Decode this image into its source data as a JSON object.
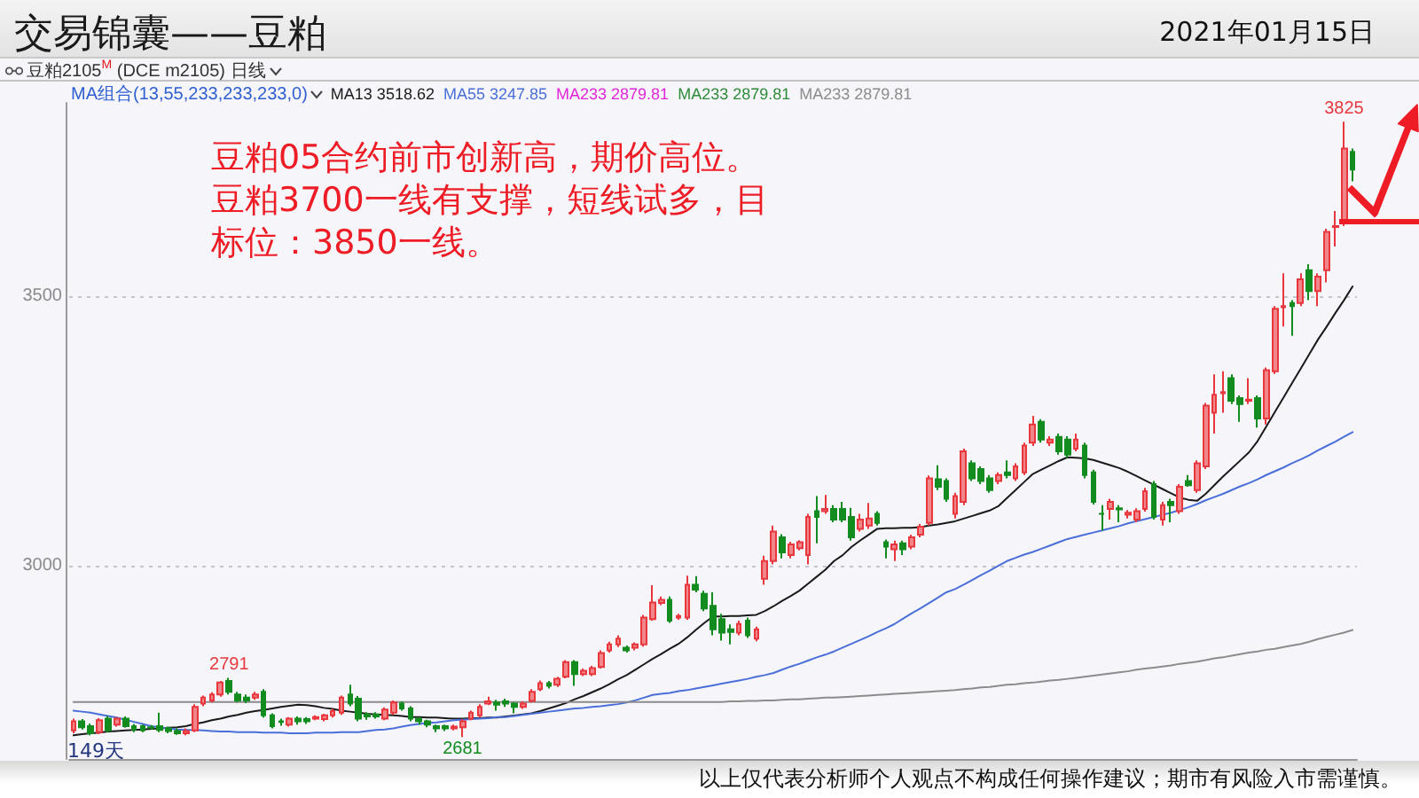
{
  "chart_data": {
    "type": "candlestick",
    "title": "交易锦囊——豆粕",
    "subtitle": "豆粕2105$^{M}$ (DCE m2105) 日线",
    "legend_title": "MA组合(13,55,233,233,233,0)",
    "legend": "top left",
    "tick_labels": "y",
    "grid": "y",
    "ylim": [
      2640,
      3860
    ],
    "yticks": [
      3000,
      3500
    ],
    "annotations": [
      "2021年01月15日",
      "豆粕05合约前市创新高，期价高位。",
      "豆粕3700一线有支撑，短线试多，目标位：3850一线。",
      "149天",
      "以上仅代表分析师个人观点不构成任何操作建议；期市有风险入市需谨慎。",
      {
        "text": "3825",
        "y": 3825
      },
      {
        "text": "2791",
        "y": 2791
      },
      {
        "text": "2681",
        "y": 2681
      }
    ],
    "categories": [
      null,
      null,
      null,
      null,
      null,
      null,
      null,
      null,
      null,
      null,
      null,
      null,
      null,
      null,
      null,
      null,
      null,
      null,
      null,
      null,
      null,
      null,
      null,
      null,
      null,
      null,
      null,
      null,
      null,
      null,
      null,
      null,
      null,
      null,
      null,
      null,
      null,
      null,
      null,
      null,
      null,
      null,
      null,
      null,
      null,
      null,
      null,
      null,
      null,
      null,
      null,
      null,
      null,
      null,
      null,
      null,
      null,
      null,
      null,
      null,
      null,
      null,
      null,
      null,
      null,
      null,
      null,
      null,
      null,
      null,
      null,
      null,
      null,
      null,
      null,
      null,
      null,
      null,
      null,
      null,
      null,
      null,
      null,
      null,
      null,
      null,
      null,
      null,
      null,
      null,
      null,
      null,
      null,
      null,
      null,
      null,
      null,
      null,
      null,
      null,
      null,
      null,
      null,
      null,
      null,
      null,
      null,
      null,
      null,
      null,
      null,
      null,
      null,
      null,
      null,
      null,
      null,
      null,
      null,
      null,
      null,
      null,
      null,
      null,
      null,
      null,
      null,
      null,
      null,
      null,
      null,
      null,
      null,
      null,
      null,
      null,
      null,
      null,
      null,
      null,
      null,
      null,
      null,
      null,
      null,
      null,
      null,
      null,
      null
    ],
    "ohlc": [
      [
        2693,
        2715,
        2688,
        2710
      ],
      [
        2710,
        2714,
        2695,
        2699
      ],
      [
        2701,
        2706,
        2684,
        2688
      ],
      [
        2690,
        2716,
        2686,
        2712
      ],
      [
        2715,
        2720,
        2690,
        2693
      ],
      [
        2704,
        2718,
        2700,
        2715
      ],
      [
        2715,
        2719,
        2698,
        2701
      ],
      [
        2701,
        2705,
        2690,
        2695
      ],
      [
        2701,
        2704,
        2690,
        2693
      ],
      [
        2699,
        2703,
        2695,
        2698
      ],
      [
        2701,
        2726,
        2690,
        2694
      ],
      [
        2697,
        2700,
        2688,
        2692
      ],
      [
        2692,
        2697,
        2685,
        2688
      ],
      [
        2688,
        2697,
        2684,
        2692
      ],
      [
        2693,
        2742,
        2690,
        2737
      ],
      [
        2743,
        2758,
        2738,
        2754
      ],
      [
        2749,
        2764,
        2745,
        2760
      ],
      [
        2760,
        2785,
        2756,
        2782
      ],
      [
        2785,
        2791,
        2760,
        2765
      ],
      [
        2760,
        2765,
        2745,
        2749
      ],
      [
        2754,
        2760,
        2744,
        2749
      ],
      [
        2754,
        2765,
        2750,
        2760
      ],
      [
        2765,
        2770,
        2717,
        2721
      ],
      [
        2721,
        2725,
        2697,
        2701
      ],
      [
        2710,
        2715,
        2702,
        2709
      ],
      [
        2704,
        2718,
        2700,
        2715
      ],
      [
        2715,
        2719,
        2704,
        2710
      ],
      [
        2714,
        2718,
        2705,
        2710
      ],
      [
        2715,
        2721,
        2712,
        2718
      ],
      [
        2714,
        2724,
        2710,
        2721
      ],
      [
        2721,
        2733,
        2717,
        2729
      ],
      [
        2726,
        2758,
        2722,
        2754
      ],
      [
        2760,
        2778,
        2738,
        2743
      ],
      [
        2752,
        2757,
        2710,
        2715
      ],
      [
        2723,
        2727,
        2713,
        2719
      ],
      [
        2723,
        2727,
        2715,
        2719
      ],
      [
        2715,
        2736,
        2712,
        2732
      ],
      [
        2726,
        2749,
        2722,
        2745
      ],
      [
        2743,
        2747,
        2730,
        2734
      ],
      [
        2734,
        2738,
        2710,
        2715
      ],
      [
        2715,
        2718,
        2704,
        2710
      ],
      [
        2710,
        2713,
        2699,
        2704
      ],
      [
        2701,
        2704,
        2690,
        2697
      ],
      [
        2701,
        2704,
        2692,
        2697
      ],
      [
        2697,
        2704,
        2693,
        2700
      ],
      [
        2699,
        2714,
        2681,
        2710
      ],
      [
        2715,
        2730,
        2712,
        2726
      ],
      [
        2721,
        2742,
        2717,
        2737
      ],
      [
        2743,
        2756,
        2740,
        2747
      ],
      [
        2745,
        2750,
        2730,
        2741
      ],
      [
        2747,
        2752,
        2737,
        2743
      ],
      [
        2743,
        2746,
        2725,
        2737
      ],
      [
        2737,
        2747,
        2733,
        2743
      ],
      [
        2748,
        2770,
        2745,
        2765
      ],
      [
        2770,
        2786,
        2766,
        2781
      ],
      [
        2781,
        2785,
        2771,
        2776
      ],
      [
        2778,
        2793,
        2774,
        2789
      ],
      [
        2793,
        2824,
        2790,
        2820
      ],
      [
        2820,
        2824,
        2776,
        2798
      ],
      [
        2798,
        2808,
        2794,
        2804
      ],
      [
        2798,
        2813,
        2794,
        2809
      ],
      [
        2811,
        2842,
        2808,
        2837
      ],
      [
        2842,
        2858,
        2838,
        2853
      ],
      [
        2853,
        2870,
        2848,
        2864
      ],
      [
        2847,
        2851,
        2838,
        2842
      ],
      [
        2847,
        2857,
        2842,
        2853
      ],
      [
        2853,
        2908,
        2849,
        2903
      ],
      [
        2900,
        2963,
        2897,
        2931
      ],
      [
        2930,
        2942,
        2926,
        2936
      ],
      [
        2936,
        2942,
        2893,
        2897
      ],
      [
        2903,
        2910,
        2899,
        2906
      ],
      [
        2903,
        2981,
        2899,
        2964
      ],
      [
        2964,
        2980,
        2950,
        2955
      ],
      [
        2947,
        2953,
        2915,
        2920
      ],
      [
        2925,
        2950,
        2870,
        2881
      ],
      [
        2900,
        2910,
        2860,
        2875
      ],
      [
        2881,
        2890,
        2853,
        2876
      ],
      [
        2875,
        2897,
        2870,
        2891
      ],
      [
        2897,
        2903,
        2865,
        2870
      ],
      [
        2864,
        2886,
        2859,
        2881
      ],
      [
        2975,
        3018,
        2964,
        3008
      ],
      [
        3008,
        3074,
        3002,
        3063
      ],
      [
        3052,
        3058,
        3013,
        3024
      ],
      [
        3019,
        3044,
        3013,
        3039
      ],
      [
        3032,
        3047,
        3028,
        3043
      ],
      [
        3019,
        3096,
        3002,
        3090
      ],
      [
        3101,
        3129,
        3041,
        3090
      ],
      [
        3101,
        3131,
        3096,
        3105
      ],
      [
        3105,
        3112,
        3080,
        3085
      ],
      [
        3105,
        3118,
        3080,
        3085
      ],
      [
        3090,
        3107,
        3046,
        3052
      ],
      [
        3068,
        3096,
        3063,
        3085
      ],
      [
        3074,
        3116,
        3068,
        3087
      ],
      [
        3096,
        3101,
        3074,
        3079
      ],
      [
        3043,
        3048,
        3013,
        3035
      ],
      [
        3030,
        3046,
        3008,
        3039
      ],
      [
        3041,
        3046,
        3019,
        3030
      ],
      [
        3035,
        3057,
        3030,
        3052
      ],
      [
        3057,
        3077,
        3052,
        3072
      ],
      [
        3079,
        3167,
        3074,
        3162
      ],
      [
        3160,
        3186,
        3140,
        3146
      ],
      [
        3157,
        3162,
        3118,
        3124
      ],
      [
        3096,
        3135,
        3087,
        3129
      ],
      [
        3118,
        3217,
        3112,
        3212
      ],
      [
        3190,
        3195,
        3157,
        3162
      ],
      [
        3179,
        3184,
        3151,
        3157
      ],
      [
        3162,
        3168,
        3135,
        3140
      ],
      [
        3157,
        3173,
        3151,
        3168
      ],
      [
        3173,
        3195,
        3162,
        3168
      ],
      [
        3162,
        3190,
        3157,
        3184
      ],
      [
        3173,
        3228,
        3168,
        3223
      ],
      [
        3228,
        3278,
        3222,
        3262
      ],
      [
        3267,
        3272,
        3228,
        3234
      ],
      [
        3228,
        3240,
        3222,
        3234
      ],
      [
        3239,
        3245,
        3206,
        3212
      ],
      [
        3234,
        3240,
        3200,
        3206
      ],
      [
        3217,
        3245,
        3212,
        3234
      ],
      [
        3223,
        3228,
        3162,
        3168
      ],
      [
        3173,
        3178,
        3113,
        3118
      ],
      [
        3096,
        3112,
        3065,
        3096
      ],
      [
        3105,
        3124,
        3085,
        3118
      ],
      [
        3106,
        3112,
        3080,
        3104
      ],
      [
        3094,
        3103,
        3087,
        3098
      ],
      [
        3085,
        3106,
        3080,
        3101
      ],
      [
        3105,
        3144,
        3100,
        3138
      ],
      [
        3151,
        3157,
        3085,
        3090
      ],
      [
        3085,
        3118,
        3074,
        3112
      ],
      [
        3118,
        3124,
        3080,
        3112
      ],
      [
        3101,
        3151,
        3096,
        3146
      ],
      [
        3157,
        3168,
        3146,
        3149
      ],
      [
        3140,
        3195,
        3135,
        3190
      ],
      [
        3184,
        3302,
        3179,
        3297
      ],
      [
        3284,
        3355,
        3245,
        3317
      ],
      [
        3320,
        3361,
        3284,
        3322
      ],
      [
        3348,
        3355,
        3300,
        3306
      ],
      [
        3311,
        3316,
        3267,
        3300
      ],
      [
        3306,
        3348,
        3300,
        3308
      ],
      [
        3311,
        3316,
        3256,
        3273
      ],
      [
        3273,
        3368,
        3262,
        3363
      ],
      [
        3361,
        3482,
        3356,
        3477
      ],
      [
        3480,
        3543,
        3444,
        3482
      ],
      [
        3488,
        3493,
        3427,
        3482
      ],
      [
        3488,
        3543,
        3482,
        3532
      ],
      [
        3549,
        3560,
        3493,
        3510
      ],
      [
        3510,
        3543,
        3482,
        3537
      ],
      [
        3549,
        3626,
        3526,
        3620
      ],
      [
        3629,
        3659,
        3593,
        3631
      ],
      [
        3637,
        3825,
        3631,
        3775
      ],
      [
        3769,
        3775,
        3714,
        3736
      ]
    ],
    "series": [
      {
        "type": "line",
        "name": "MA13 3518.62",
        "color": "#1a1a1a",
        "values": [
          2684,
          2686,
          2688,
          2689,
          2691,
          2692,
          2693,
          2694,
          2695,
          2696,
          2697,
          2698,
          2699,
          2701,
          2705,
          2708,
          2712,
          2715,
          2719,
          2722,
          2726,
          2729,
          2731,
          2734,
          2737,
          2739,
          2741,
          2740,
          2738,
          2735,
          2733,
          2730,
          2728,
          2726,
          2724,
          2723,
          2722,
          2721,
          2720,
          2718,
          2718,
          2717,
          2717,
          2716,
          2715,
          2715,
          2716,
          2716,
          2717,
          2717,
          2719,
          2721,
          2723,
          2725,
          2729,
          2734,
          2739,
          2744,
          2751,
          2757,
          2764,
          2771,
          2779,
          2788,
          2796,
          2806,
          2816,
          2826,
          2835,
          2845,
          2854,
          2866,
          2880,
          2893,
          2905,
          2905,
          2906,
          2906,
          2907,
          2908,
          2915,
          2924,
          2934,
          2943,
          2953,
          2966,
          2979,
          2992,
          3008,
          3019,
          3034,
          3046,
          3057,
          3068,
          3069,
          3069,
          3070,
          3070,
          3071,
          3074,
          3076,
          3079,
          3082,
          3087,
          3092,
          3097,
          3102,
          3110,
          3125,
          3140,
          3155,
          3170,
          3178,
          3186,
          3194,
          3201,
          3200,
          3199,
          3196,
          3191,
          3186,
          3181,
          3174,
          3166,
          3158,
          3150,
          3142,
          3134,
          3126,
          3122,
          3120,
          3133,
          3149,
          3165,
          3180,
          3195,
          3210,
          3231,
          3258,
          3285,
          3312,
          3339,
          3366,
          3393,
          3420,
          3444,
          3469,
          3493,
          3518.62
        ]
      },
      {
        "type": "line",
        "name": "MA55 3247.85",
        "color": "#4a6fd8",
        "values": [
          2730,
          2728,
          2726,
          2723,
          2720,
          2717,
          2713,
          2709,
          2705,
          2701,
          2699,
          2697,
          2695,
          2694,
          2694,
          2693,
          2692,
          2691,
          2691,
          2690,
          2690,
          2690,
          2689,
          2689,
          2689,
          2688,
          2688,
          2688,
          2689,
          2689,
          2689,
          2690,
          2690,
          2690,
          2692,
          2694,
          2695,
          2697,
          2700,
          2703,
          2705,
          2707,
          2708,
          2710,
          2712,
          2713,
          2714,
          2715,
          2716,
          2718,
          2718,
          2720,
          2722,
          2724,
          2726,
          2728,
          2730,
          2732,
          2734,
          2735,
          2737,
          2738,
          2740,
          2742,
          2745,
          2749,
          2754,
          2759,
          2761,
          2763,
          2766,
          2768,
          2771,
          2774,
          2777,
          2780,
          2783,
          2786,
          2789,
          2793,
          2796,
          2800,
          2806,
          2812,
          2817,
          2823,
          2829,
          2834,
          2840,
          2847,
          2854,
          2861,
          2868,
          2876,
          2883,
          2891,
          2901,
          2911,
          2920,
          2930,
          2940,
          2950,
          2956,
          2964,
          2973,
          2982,
          2990,
          2999,
          3008,
          3014,
          3020,
          3025,
          3031,
          3037,
          3043,
          3049,
          3053,
          3057,
          3061,
          3065,
          3069,
          3073,
          3078,
          3082,
          3086,
          3090,
          3094,
          3098,
          3103,
          3108,
          3114,
          3121,
          3127,
          3133,
          3140,
          3147,
          3153,
          3160,
          3168,
          3175,
          3182,
          3190,
          3197,
          3205,
          3214,
          3222,
          3230,
          3239,
          3247.85
        ]
      },
      {
        "type": "line",
        "name": "MA233 2879.81",
        "color": "#e026d8",
        "values": [
          null,
          null,
          null,
          null,
          null,
          null,
          null,
          null,
          null,
          null,
          null,
          null,
          null,
          null,
          null,
          null,
          null,
          null,
          null,
          null,
          null,
          null,
          null,
          null,
          null,
          null,
          null,
          null,
          null,
          null,
          null,
          null,
          null,
          null,
          null,
          null,
          null,
          null,
          null,
          null,
          null,
          null,
          null,
          null,
          null,
          null,
          null,
          null,
          null,
          null,
          null,
          null,
          null,
          null,
          null,
          null,
          null,
          null,
          null,
          null,
          null,
          null,
          null,
          null,
          null,
          null,
          null,
          null,
          null,
          null,
          null,
          null,
          null,
          null,
          null,
          null,
          null,
          null,
          null,
          null,
          null,
          null,
          null,
          null,
          null,
          null,
          null,
          null,
          null,
          null,
          null,
          null,
          null,
          null,
          null,
          null,
          null,
          null,
          null,
          null,
          null,
          null,
          null,
          null,
          null,
          null,
          null,
          null,
          null,
          null,
          null,
          null,
          null,
          null,
          null,
          null,
          null,
          null,
          null,
          null,
          null,
          null,
          null,
          null,
          null,
          null,
          null,
          null,
          null,
          null,
          null,
          null,
          null,
          null,
          null,
          null,
          null,
          null,
          null,
          null,
          null,
          null,
          null,
          null,
          null,
          null,
          null,
          null,
          null
        ]
      },
      {
        "type": "line",
        "name": "MA233 2879.81",
        "color": "#2e8b3a",
        "values": [
          null,
          null,
          null,
          null,
          null,
          null,
          null,
          null,
          null,
          null,
          null,
          null,
          null,
          null,
          null,
          null,
          null,
          null,
          null,
          null,
          null,
          null,
          null,
          null,
          null,
          null,
          null,
          null,
          null,
          null,
          null,
          null,
          null,
          null,
          null,
          null,
          null,
          null,
          null,
          null,
          null,
          null,
          null,
          null,
          null,
          null,
          null,
          null,
          null,
          null,
          null,
          null,
          null,
          null,
          null,
          null,
          null,
          null,
          null,
          null,
          null,
          null,
          null,
          null,
          null,
          null,
          null,
          null,
          null,
          null,
          null,
          null,
          null,
          null,
          null,
          null,
          null,
          null,
          null,
          null,
          null,
          null,
          null,
          null,
          null,
          null,
          null,
          null,
          null,
          null,
          null,
          null,
          null,
          null,
          null,
          null,
          null,
          null,
          null,
          null,
          null,
          null,
          null,
          null,
          null,
          null,
          null,
          null,
          null,
          null,
          null,
          null,
          null,
          null,
          null,
          null,
          null,
          null,
          null,
          null,
          null,
          null,
          null,
          null,
          null,
          null,
          null,
          null,
          null,
          null,
          null,
          null,
          null,
          null,
          null,
          null,
          null,
          null,
          null,
          null,
          null,
          null,
          null,
          null,
          null,
          null,
          null,
          null,
          null
        ]
      },
      {
        "type": "line",
        "name": "MA233 2879.81",
        "color": "#8c8c8c",
        "values": [
          2746,
          2746,
          2746,
          2746,
          2746,
          2746,
          2746,
          2746,
          2746,
          2746,
          2746,
          2746,
          2746,
          2746,
          2746,
          2746,
          2746,
          2746,
          2746,
          2746,
          2746,
          2746,
          2746,
          2746,
          2746,
          2746,
          2746,
          2746,
          2746,
          2746,
          2746,
          2746,
          2746,
          2746,
          2746,
          2746,
          2746,
          2746,
          2746,
          2746,
          2746,
          2746,
          2746,
          2746,
          2746,
          2746,
          2746,
          2746,
          2746,
          2746,
          2746,
          2746,
          2746,
          2746,
          2746,
          2746,
          2746,
          2746,
          2746,
          2746,
          2746,
          2746,
          2746,
          2746,
          2746,
          2746,
          2746,
          2746,
          2746,
          2746,
          2746,
          2746,
          2746,
          2746,
          2746,
          2746,
          2747,
          2747,
          2748,
          2748,
          2749,
          2749,
          2750,
          2751,
          2751,
          2752,
          2753,
          2754,
          2754,
          2755,
          2756,
          2757,
          2758,
          2759,
          2760,
          2761,
          2762,
          2763,
          2764,
          2765,
          2766,
          2767,
          2768,
          2770,
          2771,
          2773,
          2774,
          2776,
          2778,
          2779,
          2781,
          2782,
          2784,
          2786,
          2787,
          2789,
          2791,
          2793,
          2795,
          2797,
          2799,
          2801,
          2803,
          2806,
          2808,
          2810,
          2812,
          2814,
          2817,
          2819,
          2821,
          2824,
          2827,
          2829,
          2832,
          2835,
          2838,
          2840,
          2843,
          2845,
          2848,
          2851,
          2854,
          2858,
          2863,
          2867,
          2871,
          2875,
          2879.81
        ]
      }
    ]
  }
}
